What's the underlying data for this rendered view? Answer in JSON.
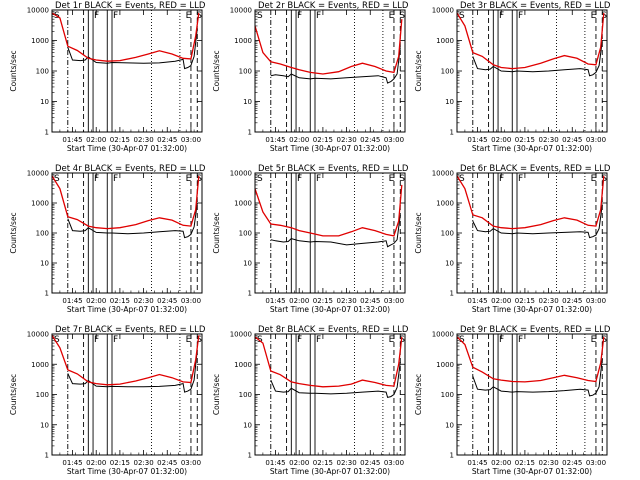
{
  "figure": {
    "background": "#ffffff"
  },
  "colors": {
    "events": "#000000",
    "lld": "#e00000"
  },
  "shared": {
    "type": "line",
    "ylabel": "Counts/sec",
    "xlabel": "Start Time (30-Apr-07 01:32:00)",
    "yscale": "log",
    "ylim": [
      1,
      10000
    ],
    "xlim": [
      "01:32",
      "03:07"
    ],
    "yticks": [
      "1",
      "10",
      "100",
      "1000",
      "10000"
    ],
    "xticks": [
      "01:45",
      "02:00",
      "02:15",
      "02:30",
      "02:45",
      "03:00"
    ],
    "markers": [
      {
        "label": "S",
        "time": "01:32"
      },
      {
        "label": "F",
        "time": "01:58"
      },
      {
        "label": "F",
        "time": "02:10"
      },
      {
        "label": "E",
        "time": "02:56"
      },
      {
        "label": "S",
        "time": "03:04"
      }
    ],
    "vlines": [
      {
        "time": "01:42",
        "style": "dashdot"
      },
      {
        "time": "01:52",
        "style": "dashed"
      },
      {
        "time": "01:55",
        "style": "solid"
      },
      {
        "time": "01:58",
        "style": "solid"
      },
      {
        "time": "02:07",
        "style": "solid"
      },
      {
        "time": "02:10",
        "style": "solid"
      },
      {
        "time": "02:35",
        "style": "dotted"
      },
      {
        "time": "02:53",
        "style": "dotted"
      },
      {
        "time": "03:00",
        "style": "dashed"
      },
      {
        "time": "03:04",
        "style": "dashed"
      }
    ]
  },
  "chart_data": [
    {
      "title": "Det 1r BLACK = Events, RED = LLD",
      "series": [
        {
          "name": "Events",
          "x": [
            "01:42",
            "01:45",
            "01:50",
            "01:53",
            "01:55",
            "02:00",
            "02:07",
            "02:10",
            "02:20",
            "02:30",
            "02:40",
            "02:50",
            "02:55",
            "02:56",
            "02:58",
            "03:00",
            "03:02",
            "03:04"
          ],
          "values": [
            600,
            230,
            220,
            230,
            290,
            190,
            180,
            190,
            185,
            180,
            185,
            210,
            240,
            120,
            130,
            150,
            300,
            2500
          ]
        },
        {
          "name": "LLD",
          "x": [
            "01:32",
            "01:37",
            "01:42",
            "01:48",
            "01:55",
            "02:00",
            "02:07",
            "02:15",
            "02:25",
            "02:33",
            "02:40",
            "02:48",
            "02:55",
            "03:00",
            "03:03",
            "03:05"
          ],
          "values": [
            8000,
            5500,
            650,
            470,
            260,
            230,
            210,
            220,
            280,
            360,
            460,
            360,
            260,
            250,
            1400,
            8000
          ]
        }
      ]
    },
    {
      "title": "Det 2r BLACK = Events, RED = LLD",
      "series": [
        {
          "name": "Events",
          "x": [
            "01:42",
            "01:45",
            "01:50",
            "01:53",
            "01:55",
            "02:00",
            "02:07",
            "02:10",
            "02:20",
            "02:30",
            "02:40",
            "02:50",
            "02:55",
            "02:56",
            "02:58",
            "03:00",
            "03:02",
            "03:04"
          ],
          "values": [
            70,
            75,
            70,
            65,
            80,
            60,
            55,
            58,
            55,
            60,
            65,
            70,
            60,
            40,
            45,
            55,
            80,
            600
          ]
        },
        {
          "name": "LLD",
          "x": [
            "01:32",
            "01:37",
            "01:42",
            "01:48",
            "01:55",
            "02:00",
            "02:07",
            "02:15",
            "02:25",
            "02:33",
            "02:40",
            "02:48",
            "02:55",
            "03:00",
            "03:03",
            "03:05"
          ],
          "values": [
            3000,
            400,
            200,
            170,
            130,
            110,
            90,
            80,
            95,
            140,
            180,
            140,
            100,
            90,
            300,
            5000
          ]
        }
      ]
    },
    {
      "title": "Det 3r BLACK = Events, RED = LLD",
      "series": [
        {
          "name": "Events",
          "x": [
            "01:42",
            "01:45",
            "01:50",
            "01:53",
            "01:55",
            "02:00",
            "02:07",
            "02:10",
            "02:20",
            "02:30",
            "02:40",
            "02:50",
            "02:55",
            "02:56",
            "02:58",
            "03:00",
            "03:02",
            "03:04"
          ],
          "values": [
            300,
            120,
            110,
            115,
            140,
            100,
            95,
            100,
            95,
            100,
            110,
            120,
            110,
            70,
            75,
            90,
            150,
            1000
          ]
        },
        {
          "name": "LLD",
          "x": [
            "01:32",
            "01:37",
            "01:42",
            "01:48",
            "01:55",
            "02:00",
            "02:07",
            "02:15",
            "02:25",
            "02:33",
            "02:40",
            "02:48",
            "02:55",
            "03:00",
            "03:03",
            "03:05"
          ],
          "values": [
            8000,
            3000,
            400,
            300,
            160,
            130,
            120,
            130,
            180,
            250,
            320,
            260,
            170,
            160,
            600,
            8000
          ]
        }
      ]
    },
    {
      "title": "Det 4r BLACK = Events, RED = LLD",
      "series": [
        {
          "name": "Events",
          "x": [
            "01:42",
            "01:45",
            "01:50",
            "01:53",
            "01:55",
            "02:00",
            "02:07",
            "02:10",
            "02:20",
            "02:30",
            "02:40",
            "02:50",
            "02:55",
            "02:56",
            "02:58",
            "03:00",
            "03:02",
            "03:04"
          ],
          "values": [
            300,
            120,
            115,
            120,
            150,
            105,
            100,
            100,
            95,
            100,
            110,
            120,
            115,
            70,
            75,
            90,
            160,
            1000
          ]
        },
        {
          "name": "LLD",
          "x": [
            "01:32",
            "01:37",
            "01:42",
            "01:48",
            "01:55",
            "02:00",
            "02:07",
            "02:15",
            "02:25",
            "02:33",
            "02:40",
            "02:48",
            "02:55",
            "03:00",
            "03:03",
            "03:05"
          ],
          "values": [
            8000,
            3000,
            350,
            280,
            170,
            150,
            140,
            150,
            190,
            260,
            320,
            270,
            180,
            170,
            600,
            8000
          ]
        }
      ]
    },
    {
      "title": "Det 5r BLACK = Events, RED = LLD",
      "series": [
        {
          "name": "Events",
          "x": [
            "01:42",
            "01:45",
            "01:50",
            "01:53",
            "01:55",
            "02:00",
            "02:07",
            "02:10",
            "02:20",
            "02:30",
            "02:40",
            "02:50",
            "02:55",
            "02:56",
            "02:58",
            "03:00",
            "03:02",
            "03:04"
          ],
          "values": [
            60,
            55,
            50,
            52,
            65,
            55,
            50,
            52,
            50,
            40,
            45,
            50,
            55,
            35,
            40,
            45,
            60,
            400
          ]
        },
        {
          "name": "LLD",
          "x": [
            "01:32",
            "01:37",
            "01:42",
            "01:48",
            "01:55",
            "02:00",
            "02:07",
            "02:15",
            "02:25",
            "02:33",
            "02:40",
            "02:48",
            "02:55",
            "03:00",
            "03:03",
            "03:05"
          ],
          "values": [
            3000,
            500,
            200,
            180,
            150,
            120,
            100,
            80,
            80,
            110,
            150,
            120,
            90,
            80,
            250,
            4000
          ]
        }
      ]
    },
    {
      "title": "Det 6r BLACK = Events, RED = LLD",
      "series": [
        {
          "name": "Events",
          "x": [
            "01:42",
            "01:45",
            "01:50",
            "01:53",
            "01:55",
            "02:00",
            "02:07",
            "02:10",
            "02:20",
            "02:30",
            "02:40",
            "02:50",
            "02:55",
            "02:56",
            "02:58",
            "03:00",
            "03:02",
            "03:04"
          ],
          "values": [
            250,
            120,
            110,
            115,
            140,
            100,
            95,
            100,
            95,
            100,
            105,
            110,
            105,
            70,
            75,
            85,
            140,
            900
          ]
        },
        {
          "name": "LLD",
          "x": [
            "01:32",
            "01:37",
            "01:42",
            "01:48",
            "01:55",
            "02:00",
            "02:07",
            "02:15",
            "02:25",
            "02:33",
            "02:40",
            "02:48",
            "02:55",
            "03:00",
            "03:03",
            "03:05"
          ],
          "values": [
            8000,
            3000,
            400,
            320,
            170,
            150,
            140,
            150,
            190,
            260,
            320,
            270,
            180,
            170,
            600,
            8000
          ]
        }
      ]
    },
    {
      "title": "Det 7r BLACK = Events, RED = LLD",
      "series": [
        {
          "name": "Events",
          "x": [
            "01:42",
            "01:45",
            "01:50",
            "01:53",
            "01:55",
            "02:00",
            "02:07",
            "02:10",
            "02:20",
            "02:30",
            "02:40",
            "02:50",
            "02:55",
            "02:56",
            "02:58",
            "03:00",
            "03:02",
            "03:04"
          ],
          "values": [
            500,
            230,
            220,
            230,
            290,
            190,
            180,
            185,
            180,
            180,
            185,
            200,
            230,
            120,
            130,
            150,
            300,
            3000
          ]
        },
        {
          "name": "LLD",
          "x": [
            "01:32",
            "01:37",
            "01:42",
            "01:48",
            "01:55",
            "02:00",
            "02:07",
            "02:15",
            "02:25",
            "02:33",
            "02:40",
            "02:48",
            "02:55",
            "03:00",
            "03:03",
            "03:05"
          ],
          "values": [
            9000,
            3500,
            650,
            480,
            260,
            230,
            210,
            220,
            280,
            360,
            460,
            360,
            260,
            250,
            1400,
            9000
          ]
        }
      ]
    },
    {
      "title": "Det 8r BLACK = Events, RED = LLD",
      "series": [
        {
          "name": "Events",
          "x": [
            "01:42",
            "01:45",
            "01:50",
            "01:53",
            "01:55",
            "02:00",
            "02:07",
            "02:10",
            "02:20",
            "02:30",
            "02:40",
            "02:50",
            "02:55",
            "02:56",
            "02:58",
            "03:00",
            "03:02",
            "03:04"
          ],
          "values": [
            300,
            130,
            120,
            125,
            160,
            115,
            110,
            110,
            105,
            110,
            120,
            130,
            120,
            80,
            85,
            100,
            170,
            1200
          ]
        },
        {
          "name": "LLD",
          "x": [
            "01:32",
            "01:37",
            "01:42",
            "01:48",
            "01:55",
            "02:00",
            "02:07",
            "02:15",
            "02:25",
            "02:33",
            "02:40",
            "02:48",
            "02:55",
            "03:00",
            "03:03",
            "03:05"
          ],
          "values": [
            8000,
            5000,
            600,
            450,
            260,
            230,
            200,
            180,
            190,
            220,
            300,
            250,
            200,
            190,
            1000,
            8000
          ]
        }
      ]
    },
    {
      "title": "Det 9r BLACK = Events, RED = LLD",
      "series": [
        {
          "name": "Events",
          "x": [
            "01:42",
            "01:45",
            "01:50",
            "01:53",
            "01:55",
            "02:00",
            "02:07",
            "02:10",
            "02:20",
            "02:30",
            "02:40",
            "02:50",
            "02:55",
            "02:56",
            "02:58",
            "03:00",
            "03:02",
            "03:04"
          ],
          "values": [
            400,
            150,
            140,
            145,
            180,
            130,
            120,
            125,
            120,
            125,
            135,
            150,
            140,
            90,
            95,
            110,
            180,
            1500
          ]
        },
        {
          "name": "LLD",
          "x": [
            "01:32",
            "01:37",
            "01:42",
            "01:48",
            "01:55",
            "02:00",
            "02:07",
            "02:15",
            "02:25",
            "02:33",
            "02:40",
            "02:48",
            "02:55",
            "03:00",
            "03:03",
            "03:05"
          ],
          "values": [
            8000,
            4500,
            800,
            550,
            330,
            300,
            270,
            260,
            290,
            360,
            430,
            360,
            290,
            270,
            1100,
            8000
          ]
        }
      ]
    }
  ]
}
